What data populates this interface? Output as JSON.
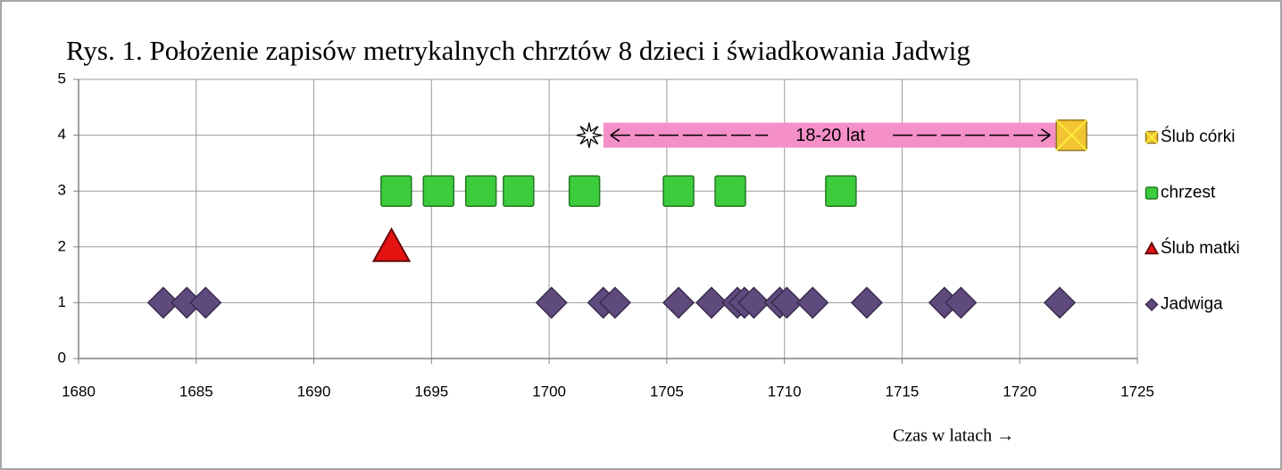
{
  "chart_data": {
    "type": "scatter",
    "title": "Rys. 1. Położenie zapisów metrykalnych chrztów 8 dzieci i świadkowania Jadwig",
    "x_label": "Czas w latach →",
    "xlim": [
      1680,
      1725
    ],
    "xticks": [
      1680,
      1685,
      1690,
      1695,
      1700,
      1705,
      1710,
      1715,
      1720,
      1725
    ],
    "ylim": [
      0,
      5
    ],
    "yticks": [
      0,
      1,
      2,
      3,
      4,
      5
    ],
    "grid": true,
    "legend": "right",
    "series": [
      {
        "name": "Ślub córki",
        "color": "#f2c432",
        "marker": "square-x",
        "x": [
          1722.2
        ],
        "y": [
          4
        ]
      },
      {
        "name": "chrzest",
        "color": "#3ccc3c",
        "marker": "square",
        "x": [
          1693.5,
          1695.3,
          1697.1,
          1698.7,
          1701.5,
          1705.5,
          1707.7,
          1712.4
        ],
        "y": [
          3,
          3,
          3,
          3,
          3,
          3,
          3,
          3
        ]
      },
      {
        "name": "Ślub matki",
        "color": "#e51212",
        "marker": "triangle",
        "x": [
          1693.3
        ],
        "y": [
          2
        ]
      },
      {
        "name": "Jadwiga",
        "color": "#5f4a7e",
        "marker": "diamond",
        "x": [
          1683.6,
          1684.6,
          1685.4,
          1700.1,
          1702.3,
          1702.8,
          1705.5,
          1706.9,
          1708.0,
          1708.3,
          1708.7,
          1709.8,
          1710.1,
          1711.2,
          1713.5,
          1716.8,
          1717.5,
          1721.7
        ],
        "y": [
          1,
          1,
          1,
          1,
          1,
          1,
          1,
          1,
          1,
          1,
          1,
          1,
          1,
          1,
          1,
          1,
          1,
          1
        ]
      }
    ],
    "annotation": {
      "text": "18-20 lat",
      "x_start": 1701.7,
      "x_end": 1721.6,
      "y": 4,
      "color": "#f48fc8"
    }
  }
}
